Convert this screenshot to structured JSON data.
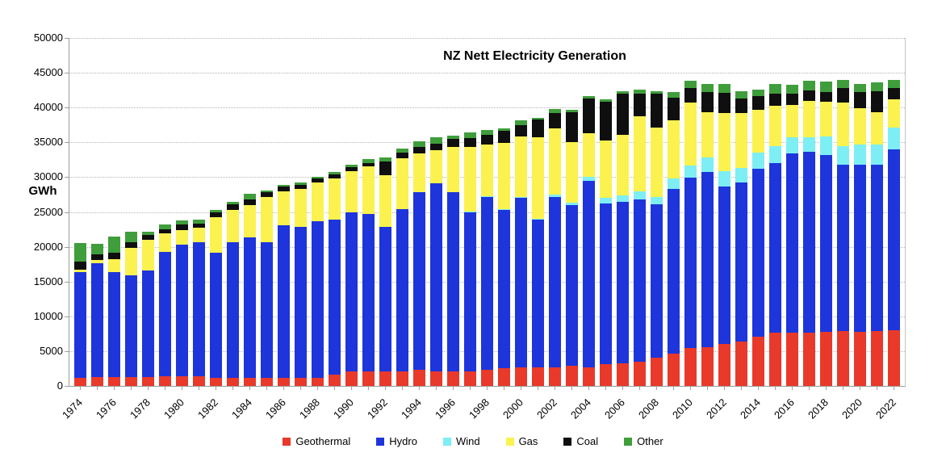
{
  "title": "NZ Nett Electricity Generation",
  "y_axis": {
    "label": "GWh",
    "tick_labels": [
      "0",
      "5000",
      "10000",
      "15000",
      "20000",
      "25000",
      "30000",
      "35000",
      "40000",
      "45000",
      "50000"
    ]
  },
  "legend": {
    "items": [
      {
        "label": "Geothermal",
        "color": "#e8392b"
      },
      {
        "label": "Hydro",
        "color": "#1d35db"
      },
      {
        "label": "Wind",
        "color": "#7deef4"
      },
      {
        "label": "Gas",
        "color": "#fbf24f"
      },
      {
        "label": "Coal",
        "color": "#0f0f0f"
      },
      {
        "label": "Other",
        "color": "#3f9e3b"
      }
    ]
  },
  "chart_data": {
    "type": "bar",
    "stacked": true,
    "title": "NZ Nett Electricity Generation",
    "ylabel": "GWh",
    "ylim": [
      0,
      50000
    ],
    "ytick_step": 5000,
    "grid": "horizontal-dotted",
    "legend_position": "bottom",
    "x_label_every": 2,
    "x": [
      1974,
      1975,
      1976,
      1977,
      1978,
      1979,
      1980,
      1981,
      1982,
      1983,
      1984,
      1985,
      1986,
      1987,
      1988,
      1989,
      1990,
      1991,
      1992,
      1993,
      1994,
      1995,
      1996,
      1997,
      1998,
      1999,
      2000,
      2001,
      2002,
      2003,
      2004,
      2005,
      2006,
      2007,
      2008,
      2009,
      2010,
      2011,
      2012,
      2013,
      2014,
      2015,
      2016,
      2017,
      2018,
      2019,
      2020,
      2021,
      2022
    ],
    "series": [
      {
        "name": "Geothermal",
        "color": "#e8392b",
        "values": [
          1200,
          1250,
          1300,
          1300,
          1300,
          1350,
          1350,
          1350,
          1200,
          1200,
          1200,
          1200,
          1200,
          1200,
          1200,
          1600,
          2100,
          2100,
          2100,
          2100,
          2300,
          2100,
          2100,
          2100,
          2300,
          2500,
          2700,
          2700,
          2700,
          2900,
          2700,
          3100,
          3300,
          3500,
          4100,
          4600,
          5400,
          5600,
          6000,
          6400,
          7100,
          7700,
          7700,
          7700,
          7800,
          7900,
          7800,
          7900,
          8000
        ]
      },
      {
        "name": "Hydro",
        "color": "#1d35db",
        "values": [
          15200,
          16400,
          15000,
          14600,
          15300,
          17900,
          18900,
          19300,
          17900,
          19500,
          20200,
          19500,
          21900,
          21600,
          22500,
          22300,
          22800,
          22600,
          20800,
          23300,
          25500,
          27000,
          25800,
          22900,
          24900,
          22800,
          24300,
          21200,
          24500,
          23100,
          26800,
          23100,
          23200,
          23300,
          22000,
          23700,
          24500,
          25100,
          22600,
          22800,
          24100,
          24300,
          25700,
          26000,
          25400,
          23900,
          24000,
          23900,
          26000
        ]
      },
      {
        "name": "Wind",
        "color": "#7deef4",
        "values": [
          0,
          0,
          0,
          0,
          0,
          0,
          0,
          0,
          0,
          0,
          0,
          0,
          0,
          0,
          0,
          0,
          0,
          0,
          0,
          0,
          0,
          0,
          0,
          20,
          30,
          120,
          120,
          150,
          350,
          370,
          500,
          800,
          900,
          1150,
          1050,
          1550,
          1750,
          2100,
          2300,
          2150,
          2300,
          2500,
          2300,
          2000,
          2700,
          2700,
          2900,
          2900,
          3100
        ]
      },
      {
        "name": "Gas",
        "color": "#fbf24f",
        "values": [
          300,
          400,
          1900,
          3900,
          4400,
          2700,
          2100,
          2100,
          5200,
          4600,
          4600,
          6500,
          4900,
          5500,
          5500,
          5900,
          6000,
          6900,
          7400,
          7300,
          5600,
          4800,
          6400,
          9300,
          7500,
          9500,
          8700,
          11700,
          9400,
          8700,
          6300,
          8300,
          8700,
          10800,
          10000,
          8300,
          9100,
          6500,
          8300,
          7900,
          6200,
          5800,
          4700,
          5200,
          4900,
          6200,
          5200,
          4600,
          4100
        ]
      },
      {
        "name": "Coal",
        "color": "#0f0f0f",
        "values": [
          1200,
          850,
          950,
          900,
          700,
          600,
          800,
          600,
          600,
          800,
          800,
          600,
          600,
          600,
          600,
          600,
          500,
          400,
          1900,
          800,
          950,
          950,
          1150,
          1350,
          1350,
          1700,
          1700,
          2500,
          2300,
          4200,
          5000,
          5500,
          5900,
          3300,
          4800,
          3300,
          2050,
          2900,
          2900,
          2100,
          2000,
          1700,
          1550,
          1550,
          1400,
          2100,
          2300,
          3100,
          1550
        ]
      },
      {
        "name": "Other",
        "color": "#3f9e3b",
        "values": [
          2600,
          1500,
          2350,
          1450,
          500,
          600,
          650,
          600,
          400,
          350,
          800,
          300,
          300,
          300,
          300,
          350,
          430,
          600,
          600,
          580,
          750,
          850,
          550,
          750,
          750,
          430,
          700,
          300,
          500,
          400,
          400,
          400,
          400,
          580,
          400,
          770,
          1040,
          1160,
          1240,
          970,
          900,
          1350,
          1350,
          1450,
          1500,
          1160,
          1160,
          1240,
          1270
        ]
      }
    ]
  }
}
